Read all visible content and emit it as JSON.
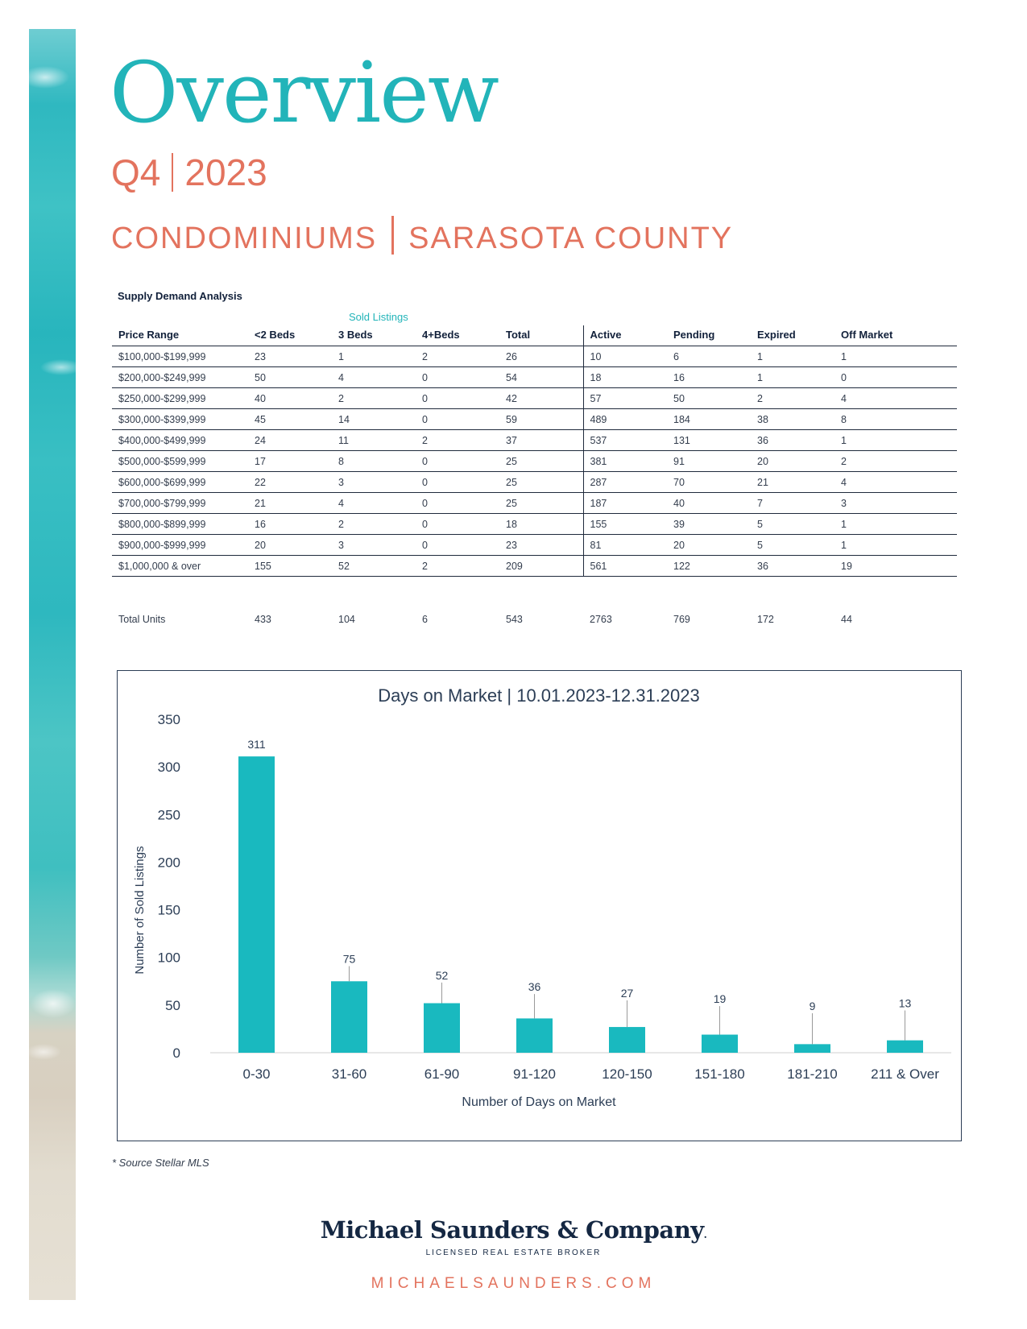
{
  "header": {
    "title": "Overview",
    "quarter": "Q4",
    "year": "2023",
    "property_type": "CONDOMINIUMS",
    "region": "SARASOTA COUNTY"
  },
  "table": {
    "title": "Supply Demand Analysis",
    "group_label": "Sold Listings",
    "headers": [
      "Price Range",
      "<2 Beds",
      "3 Beds",
      "4+Beds",
      "Total",
      "Active",
      "Pending",
      "Expired",
      "Off Market"
    ],
    "rows": [
      [
        "$100,000-$199,999",
        "23",
        "1",
        "2",
        "26",
        "10",
        "6",
        "1",
        "1"
      ],
      [
        "$200,000-$249,999",
        "50",
        "4",
        "0",
        "54",
        "18",
        "16",
        "1",
        "0"
      ],
      [
        "$250,000-$299,999",
        "40",
        "2",
        "0",
        "42",
        "57",
        "50",
        "2",
        "4"
      ],
      [
        "$300,000-$399,999",
        "45",
        "14",
        "0",
        "59",
        "489",
        "184",
        "38",
        "8"
      ],
      [
        "$400,000-$499,999",
        "24",
        "11",
        "2",
        "37",
        "537",
        "131",
        "36",
        "1"
      ],
      [
        "$500,000-$599,999",
        "17",
        "8",
        "0",
        "25",
        "381",
        "91",
        "20",
        "2"
      ],
      [
        "$600,000-$699,999",
        "22",
        "3",
        "0",
        "25",
        "287",
        "70",
        "21",
        "4"
      ],
      [
        "$700,000-$799,999",
        "21",
        "4",
        "0",
        "25",
        "187",
        "40",
        "7",
        "3"
      ],
      [
        "$800,000-$899,999",
        "16",
        "2",
        "0",
        "18",
        "155",
        "39",
        "5",
        "1"
      ],
      [
        "$900,000-$999,999",
        "20",
        "3",
        "0",
        "23",
        "81",
        "20",
        "5",
        "1"
      ],
      [
        "$1,000,000 & over",
        "155",
        "52",
        "2",
        "209",
        "561",
        "122",
        "36",
        "19"
      ]
    ],
    "total_row": [
      "Total Units",
      "433",
      "104",
      "6",
      "543",
      "2763",
      "769",
      "172",
      "44"
    ]
  },
  "chart_data": {
    "type": "bar",
    "title": "Days on Market | 10.01.2023-12.31.2023",
    "xlabel": "Number of Days on Market",
    "ylabel": "Number of Sold Listings",
    "categories": [
      "0-30",
      "31-60",
      "61-90",
      "91-120",
      "120-150",
      "151-180",
      "181-210",
      "211 & Over"
    ],
    "values": [
      311,
      75,
      52,
      36,
      27,
      19,
      9,
      13
    ],
    "ylim": [
      0,
      350
    ],
    "yticks": [
      "0",
      "50",
      "100",
      "150",
      "200",
      "250",
      "300",
      "350"
    ],
    "color": "#19b9bf",
    "grid": false,
    "legend": "none"
  },
  "source_note": "* Source Stellar MLS",
  "footer": {
    "brand": "Michael Saunders & Company",
    "trademark": ".",
    "tagline": "LICENSED REAL ESTATE BROKER",
    "website": "MICHAELSAUNDERS.COM"
  },
  "colors": {
    "teal": "#22b4b9",
    "coral": "#e3735e",
    "navy": "#142742"
  }
}
